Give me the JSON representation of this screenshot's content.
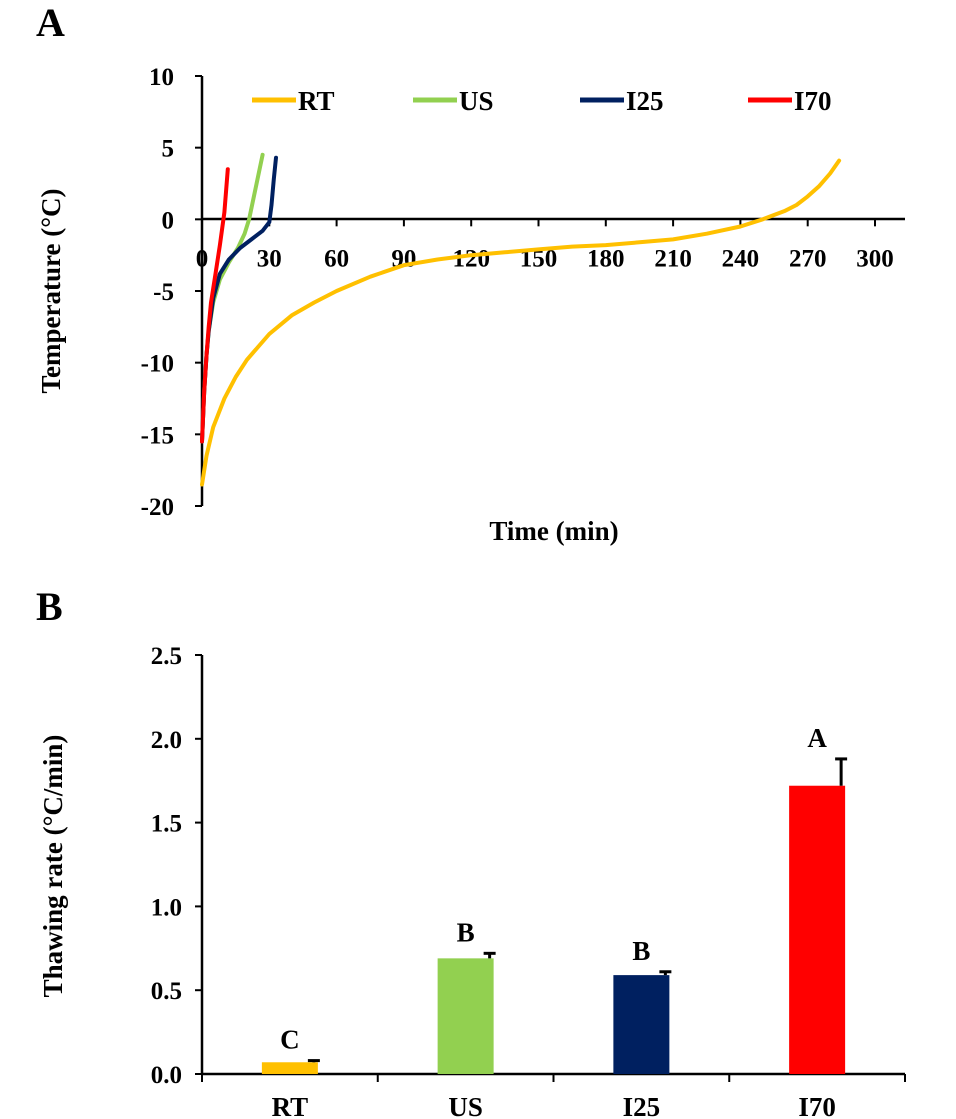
{
  "chart_data": [
    {
      "panel": "A",
      "type": "line",
      "title": "",
      "xlabel": "Time (min)",
      "ylabel": "Temperature (°C)",
      "xlim": [
        0,
        300
      ],
      "ylim": [
        -20,
        10
      ],
      "x_ticks": [
        "0",
        "30",
        "60",
        "90",
        "120",
        "150",
        "180",
        "210",
        "240",
        "270",
        "300"
      ],
      "y_ticks": [
        "10",
        "5",
        "0",
        "-5",
        "-10",
        "-15",
        "-20"
      ],
      "legend_position": "top",
      "series": [
        {
          "name": "RT",
          "color": "#FFC000",
          "x": [
            0,
            2,
            5,
            10,
            15,
            20,
            30,
            40,
            50,
            60,
            75,
            90,
            105,
            120,
            135,
            150,
            165,
            180,
            195,
            210,
            225,
            240,
            250,
            255,
            260,
            265,
            270,
            275,
            280,
            284
          ],
          "y": [
            -18.5,
            -16.5,
            -14.5,
            -12.5,
            -11.0,
            -9.8,
            -8.0,
            -6.7,
            -5.8,
            -5.0,
            -4.0,
            -3.2,
            -2.8,
            -2.5,
            -2.3,
            -2.1,
            -1.9,
            -1.8,
            -1.6,
            -1.4,
            -1.0,
            -0.5,
            0.0,
            0.3,
            0.6,
            1.0,
            1.6,
            2.3,
            3.2,
            4.1
          ]
        },
        {
          "name": "US",
          "color": "#92D050",
          "x": [
            0,
            1,
            2,
            3,
            5,
            8,
            12,
            16,
            19,
            21,
            23,
            25,
            27
          ],
          "y": [
            -15.5,
            -12.0,
            -9.5,
            -7.8,
            -5.8,
            -4.2,
            -3.0,
            -2.0,
            -1.0,
            0.0,
            1.5,
            3.0,
            4.5
          ]
        },
        {
          "name": "I25",
          "color": "#002060",
          "x": [
            0,
            1,
            2,
            3,
            5,
            8,
            12,
            17,
            22,
            27,
            30,
            31,
            32,
            33
          ],
          "y": [
            -15.5,
            -12.0,
            -9.5,
            -7.8,
            -5.5,
            -3.8,
            -2.8,
            -2.0,
            -1.4,
            -0.8,
            -0.2,
            1.0,
            2.8,
            4.3
          ]
        },
        {
          "name": "I70",
          "color": "#FF0000",
          "x": [
            0,
            1,
            2,
            3,
            4,
            6,
            8,
            10,
            11.5
          ],
          "y": [
            -15.5,
            -12.0,
            -9.5,
            -7.5,
            -5.8,
            -3.8,
            -1.8,
            0.5,
            3.5
          ]
        }
      ]
    },
    {
      "panel": "B",
      "type": "bar",
      "title": "",
      "xlabel": "",
      "ylabel": "Thawing rate (°C/min)",
      "ylim": [
        0,
        2.5
      ],
      "y_ticks": [
        "2.5",
        "2.0",
        "1.5",
        "1.0",
        "0.5",
        "0.0"
      ],
      "categories": [
        "RT",
        "US",
        "I25",
        "I70"
      ],
      "values": [
        0.07,
        0.69,
        0.59,
        1.72
      ],
      "errors": [
        0.01,
        0.03,
        0.02,
        0.16
      ],
      "letters": [
        "C",
        "B",
        "B",
        "A"
      ],
      "colors": [
        "#FFC000",
        "#92D050",
        "#002060",
        "#FF0000"
      ]
    }
  ]
}
